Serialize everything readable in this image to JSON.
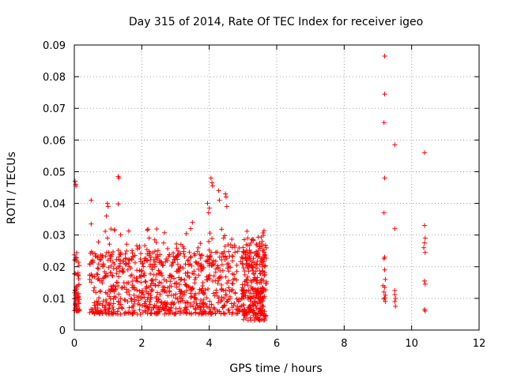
{
  "chart_data": {
    "type": "scatter",
    "title": "Day 315 of 2014, Rate Of TEC Index for receiver igeo",
    "xlabel": "GPS time / hours",
    "ylabel": "ROTI / TECUs",
    "xlim": [
      0,
      12
    ],
    "ylim": [
      0,
      0.09
    ],
    "grid": true,
    "marker": "+",
    "color": "#ff0000",
    "x_ticks": [
      "0",
      "2",
      "4",
      "6",
      "8",
      "10",
      "12"
    ],
    "y_ticks": [
      "0",
      "0.01",
      "0.02",
      "0.03",
      "0.04",
      "0.05",
      "0.06",
      "0.07",
      "0.08",
      "0.09"
    ],
    "clusters": [
      {
        "x_start": 0.0,
        "x_end": 0.15,
        "ymin": 0.006,
        "ymax": 0.025,
        "n": 60
      },
      {
        "x_start": 0.45,
        "x_end": 5.65,
        "ymin": 0.005,
        "ymax": 0.025,
        "n": 900
      },
      {
        "x_start": 0.45,
        "x_end": 5.65,
        "ymin": 0.02,
        "ymax": 0.032,
        "n": 120
      },
      {
        "x_start": 5.0,
        "x_end": 5.7,
        "ymin": 0.003,
        "ymax": 0.03,
        "n": 180
      }
    ],
    "points": [
      {
        "x": 0.02,
        "y": 0.047
      },
      {
        "x": 0.04,
        "y": 0.046
      },
      {
        "x": 0.05,
        "y": 0.0455
      },
      {
        "x": 0.5,
        "y": 0.041
      },
      {
        "x": 0.5,
        "y": 0.0335
      },
      {
        "x": 0.98,
        "y": 0.04
      },
      {
        "x": 1.0,
        "y": 0.039
      },
      {
        "x": 0.95,
        "y": 0.036
      },
      {
        "x": 1.3,
        "y": 0.0485
      },
      {
        "x": 1.32,
        "y": 0.048
      },
      {
        "x": 1.3,
        "y": 0.0398
      },
      {
        "x": 3.5,
        "y": 0.034
      },
      {
        "x": 3.45,
        "y": 0.032
      },
      {
        "x": 3.95,
        "y": 0.04
      },
      {
        "x": 4.0,
        "y": 0.0385
      },
      {
        "x": 3.98,
        "y": 0.037
      },
      {
        "x": 4.05,
        "y": 0.048
      },
      {
        "x": 4.08,
        "y": 0.0465
      },
      {
        "x": 4.1,
        "y": 0.0455
      },
      {
        "x": 4.28,
        "y": 0.044
      },
      {
        "x": 4.3,
        "y": 0.041
      },
      {
        "x": 4.48,
        "y": 0.043
      },
      {
        "x": 4.5,
        "y": 0.042
      },
      {
        "x": 4.52,
        "y": 0.039
      },
      {
        "x": 9.2,
        "y": 0.0865
      },
      {
        "x": 9.2,
        "y": 0.0745
      },
      {
        "x": 9.18,
        "y": 0.0655
      },
      {
        "x": 9.5,
        "y": 0.0585
      },
      {
        "x": 9.2,
        "y": 0.048
      },
      {
        "x": 9.18,
        "y": 0.037
      },
      {
        "x": 9.5,
        "y": 0.032
      },
      {
        "x": 9.2,
        "y": 0.023
      },
      {
        "x": 9.18,
        "y": 0.0225
      },
      {
        "x": 9.2,
        "y": 0.019
      },
      {
        "x": 9.22,
        "y": 0.016
      },
      {
        "x": 9.15,
        "y": 0.014
      },
      {
        "x": 9.2,
        "y": 0.0135
      },
      {
        "x": 9.18,
        "y": 0.012
      },
      {
        "x": 9.22,
        "y": 0.011
      },
      {
        "x": 9.2,
        "y": 0.0102
      },
      {
        "x": 9.18,
        "y": 0.0098
      },
      {
        "x": 9.22,
        "y": 0.009
      },
      {
        "x": 9.5,
        "y": 0.0125
      },
      {
        "x": 9.5,
        "y": 0.0112
      },
      {
        "x": 9.52,
        "y": 0.01
      },
      {
        "x": 9.5,
        "y": 0.009
      },
      {
        "x": 9.52,
        "y": 0.0075
      },
      {
        "x": 10.38,
        "y": 0.056
      },
      {
        "x": 10.38,
        "y": 0.033
      },
      {
        "x": 10.4,
        "y": 0.029
      },
      {
        "x": 10.38,
        "y": 0.0275
      },
      {
        "x": 10.36,
        "y": 0.026
      },
      {
        "x": 10.4,
        "y": 0.0245
      },
      {
        "x": 10.38,
        "y": 0.0155
      },
      {
        "x": 10.4,
        "y": 0.0145
      },
      {
        "x": 10.38,
        "y": 0.0065
      },
      {
        "x": 10.4,
        "y": 0.006
      }
    ]
  }
}
